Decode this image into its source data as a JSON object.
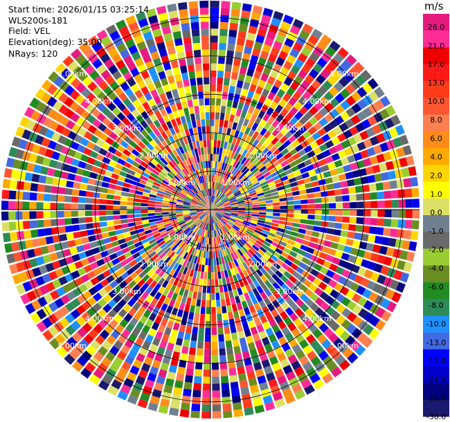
{
  "header": {
    "start_time": "Start time: 2026/01/15 03:25:14",
    "instrument": "WLS200s-181",
    "field": "Field: VEL",
    "elevation": "Elevation(deg): 35.00",
    "nrays": "NRays: 120"
  },
  "colorbar": {
    "unit": "m/s",
    "ticks": [
      "26.0",
      "21.0",
      "17.0",
      "13.0",
      "10.0",
      "8.0",
      "6.0",
      "4.0",
      "2.0",
      "1.0",
      "0.0",
      "-1.0",
      "-2.0",
      "-4.0",
      "-6.0",
      "-8.0",
      "-10.0",
      "-13.0",
      "-17.0",
      "-21.0",
      "-26.0",
      "-30.0"
    ],
    "colors": [
      "#e6197f",
      "#ff2d95",
      "#ee0000",
      "#ff1a1a",
      "#ff3b1a",
      "#ff5533",
      "#ff7f50",
      "#ff8c1a",
      "#ffaa00",
      "#ffd400",
      "#ffff00",
      "#dde066",
      "#708090",
      "#696969",
      "#9acd32",
      "#6b8e23",
      "#228b22",
      "#2e8b57",
      "#1e90ff",
      "#4169e1",
      "#0000ff",
      "#0000cd",
      "#000080",
      "#191970"
    ]
  },
  "chart_data": {
    "type": "heatmap",
    "projection": "polar PPI (plan position indicator)",
    "field": "VEL",
    "units": "m/s",
    "elevation_deg": 35.0,
    "n_rays": 120,
    "range_rings_km": [
      "1.00km",
      "2.00km",
      "3.00km",
      "4.00km",
      "5.00km"
    ],
    "value_range": [
      -30,
      26
    ],
    "note": "Velocity values are noisy/clutter-like across all range gates; color-coded per gate."
  }
}
